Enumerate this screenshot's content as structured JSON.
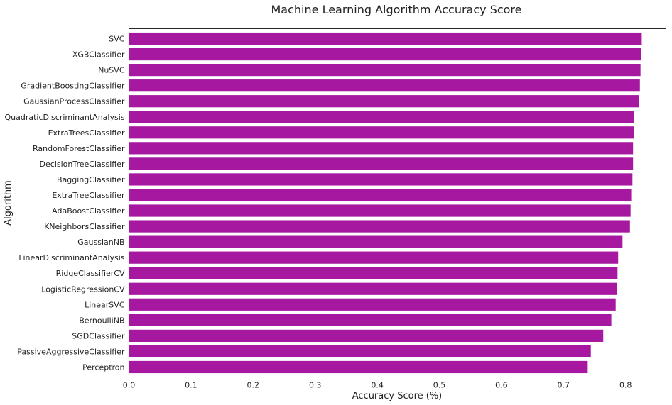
{
  "chart_data": {
    "type": "bar",
    "orientation": "horizontal",
    "title": "Machine Learning Algorithm Accuracy Score",
    "xlabel": "Accuracy Score (%)",
    "ylabel": "Algorithm",
    "xlim": [
      0,
      0.865
    ],
    "xticks": [
      "0.0",
      "0.1",
      "0.2",
      "0.3",
      "0.4",
      "0.5",
      "0.6",
      "0.7",
      "0.8"
    ],
    "bar_color": "#a5189f",
    "grid": false,
    "categories": [
      "SVC",
      "XGBClassifier",
      "NuSVC",
      "GradientBoostingClassifier",
      "GaussianProcessClassifier",
      "QuadraticDiscriminantAnalysis",
      "ExtraTreesClassifier",
      "RandomForestClassifier",
      "DecisionTreeClassifier",
      "BaggingClassifier",
      "ExtraTreeClassifier",
      "AdaBoostClassifier",
      "KNeighborsClassifier",
      "GaussianNB",
      "LinearDiscriminantAnalysis",
      "RidgeClassifierCV",
      "LogisticRegressionCV",
      "LinearSVC",
      "BernoulliNB",
      "SGDClassifier",
      "PassiveAggressiveClassifier",
      "Perceptron"
    ],
    "values": [
      0.826,
      0.825,
      0.824,
      0.823,
      0.821,
      0.813,
      0.813,
      0.812,
      0.812,
      0.811,
      0.809,
      0.808,
      0.807,
      0.795,
      0.788,
      0.787,
      0.786,
      0.784,
      0.777,
      0.764,
      0.744,
      0.739
    ]
  }
}
